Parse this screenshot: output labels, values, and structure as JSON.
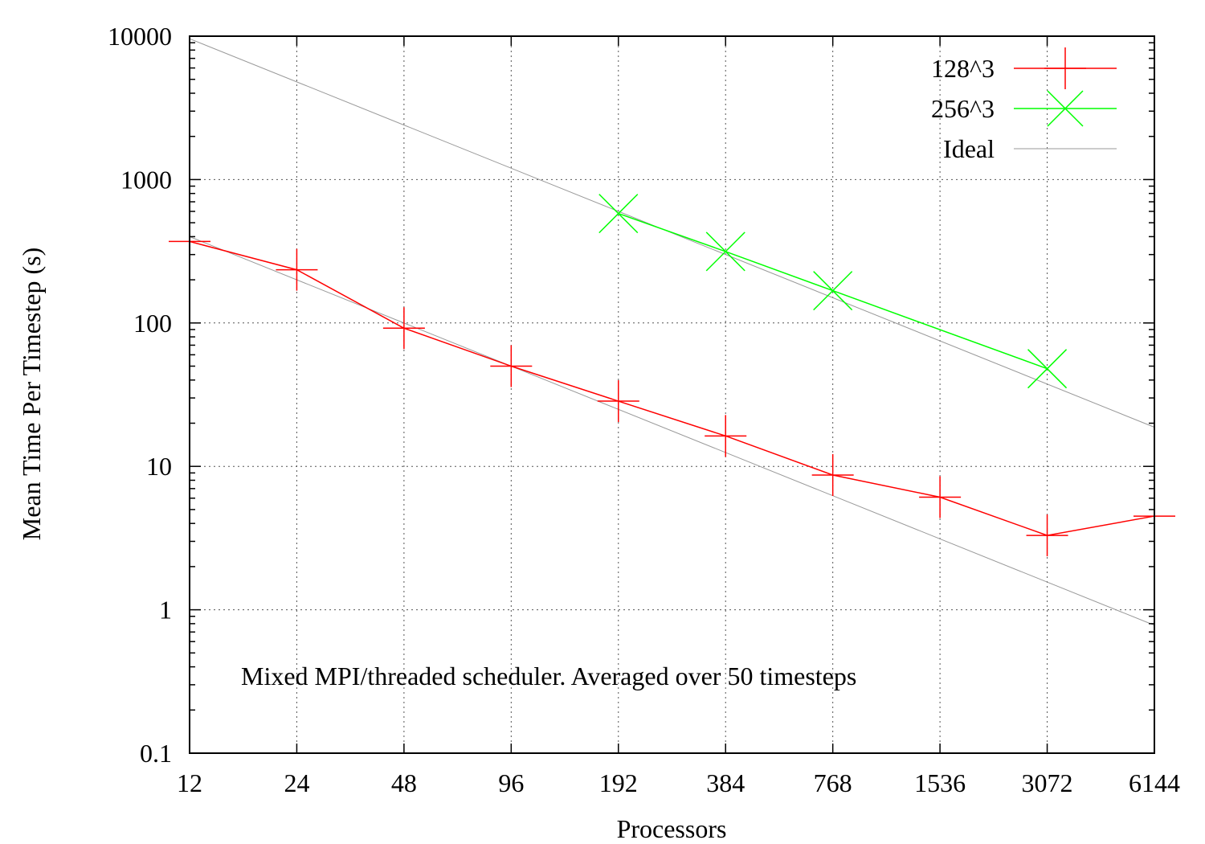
{
  "chart_data": {
    "type": "line",
    "xlabel": "Processors",
    "ylabel": "Mean Time Per Timestep (s)",
    "annotation": "Mixed MPI/threaded scheduler. Averaged over 50 timesteps",
    "x_scale": "log",
    "y_scale": "log",
    "xlim": [
      12,
      6144
    ],
    "ylim": [
      0.1,
      10000
    ],
    "x_ticks": [
      "12",
      "24",
      "48",
      "96",
      "192",
      "384",
      "768",
      "1536",
      "3072",
      "6144"
    ],
    "y_ticks": [
      "10000",
      "1000",
      "100",
      "10",
      "1",
      "0.1"
    ],
    "grid": true,
    "legend_position": "top-right",
    "series": [
      {
        "name": "128^3",
        "color": "#ff0000",
        "marker": "plus",
        "x": [
          12,
          24,
          48,
          96,
          192,
          384,
          768,
          1536,
          3072,
          6144
        ],
        "y": [
          370,
          235,
          92,
          50,
          28.5,
          16.3,
          8.7,
          6.1,
          3.3,
          4.5
        ]
      },
      {
        "name": "256^3",
        "color": "#00ff00",
        "marker": "cross",
        "x": [
          192,
          384,
          768,
          3072
        ],
        "y": [
          580,
          315,
          168,
          48
        ]
      },
      {
        "name": "Ideal",
        "color": "#999999",
        "marker": "none",
        "lines": [
          {
            "x": [
              12,
              6144
            ],
            "y": [
              9600,
              18.75
            ]
          },
          {
            "x": [
              12,
              6144
            ],
            "y": [
              400,
              0.78
            ]
          }
        ]
      }
    ]
  }
}
